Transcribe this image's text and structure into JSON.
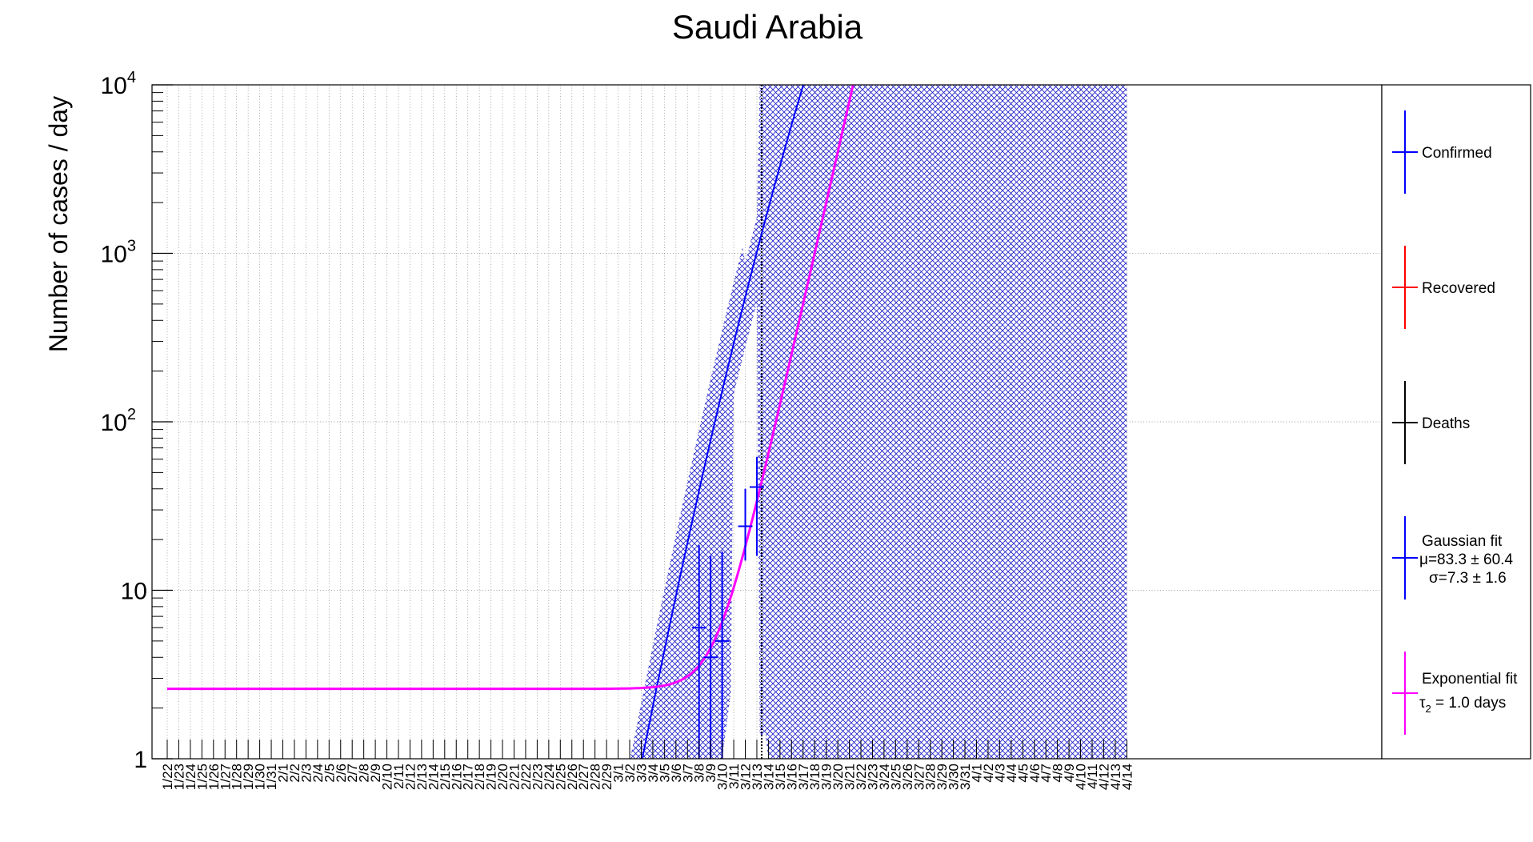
{
  "chart_data": {
    "type": "line",
    "title": "Saudi Arabia",
    "ylabel": "Number of cases / day",
    "xlabel": "",
    "yscale": "log",
    "ylim": [
      1,
      10000
    ],
    "y_ticks": [
      {
        "value": 1,
        "label": "1",
        "exp": ""
      },
      {
        "value": 10,
        "label": "10",
        "exp": ""
      },
      {
        "value": 100,
        "label": "10",
        "exp": "2"
      },
      {
        "value": 1000,
        "label": "10",
        "exp": "3"
      },
      {
        "value": 10000,
        "label": "10",
        "exp": "4"
      }
    ],
    "grid": true,
    "categories": [
      "1/22",
      "1/23",
      "1/24",
      "1/25",
      "1/26",
      "1/27",
      "1/28",
      "1/29",
      "1/30",
      "1/31",
      "2/1",
      "2/2",
      "2/3",
      "2/4",
      "2/5",
      "2/6",
      "2/7",
      "2/8",
      "2/9",
      "2/10",
      "2/11",
      "2/12",
      "2/13",
      "2/14",
      "2/15",
      "2/16",
      "2/17",
      "2/18",
      "2/19",
      "2/20",
      "2/21",
      "2/22",
      "2/23",
      "2/24",
      "2/25",
      "2/26",
      "2/27",
      "2/28",
      "2/29",
      "3/1",
      "3/2",
      "3/3",
      "3/4",
      "3/5",
      "3/6",
      "3/7",
      "3/8",
      "3/9",
      "3/10",
      "3/11",
      "3/12",
      "3/13",
      "3/14",
      "3/15",
      "3/16",
      "3/17",
      "3/18",
      "3/19",
      "3/20",
      "3/21",
      "3/22",
      "3/23",
      "3/24",
      "3/25",
      "3/26",
      "3/27",
      "3/28",
      "3/29",
      "3/30",
      "3/31",
      "4/1",
      "4/2",
      "4/3",
      "4/4",
      "4/5",
      "4/6",
      "4/7",
      "4/8",
      "4/9",
      "4/10",
      "4/11",
      "4/12",
      "4/13",
      "4/14"
    ],
    "vertical_marker": "3/13",
    "series": [
      {
        "name": "Confirmed",
        "color": "#0000ff",
        "points": [
          {
            "x": "3/8",
            "y": 6,
            "err_low": 5,
            "err_high": 18.5
          },
          {
            "x": "3/9",
            "y": 4,
            "err_low": 3,
            "err_high": 16
          },
          {
            "x": "3/10",
            "y": 5,
            "err_low": 4,
            "err_high": 17
          },
          {
            "x": "3/12",
            "y": 24,
            "err_low": 9,
            "err_high": 40
          },
          {
            "x": "3/13",
            "y": 41,
            "err_low": 25,
            "err_high": 62
          }
        ]
      },
      {
        "name": "Recovered",
        "color": "#ff0000",
        "points": []
      },
      {
        "name": "Deaths",
        "color": "#000000",
        "points": []
      },
      {
        "name": "Gaussian fit",
        "color": "#0000ff",
        "params": [
          "μ=83.3 ± 60.4",
          "σ=7.3 ± 1.6"
        ],
        "mu": 83.3,
        "sigma": 7.3,
        "amplitude": 18200000.0,
        "band_color": "#1a1ac8"
      },
      {
        "name": "Exponential fit",
        "color": "#ff00ff",
        "params": [
          "τ",
          "2",
          " = 1.0 days"
        ],
        "baseline": 2.6,
        "doubling_days": 1.0,
        "value_at_3_10": 6.5
      }
    ],
    "legend": {
      "position": "right",
      "entries": [
        "Confirmed",
        "Recovered",
        "Deaths",
        "Gaussian fit",
        "Exponential fit"
      ]
    }
  }
}
